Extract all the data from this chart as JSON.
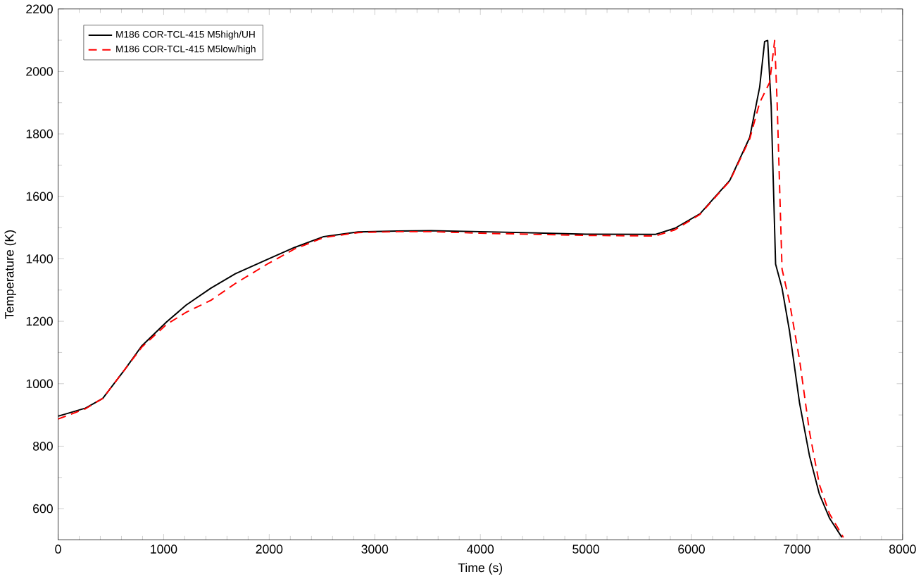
{
  "chart_data": {
    "type": "line",
    "xlabel": "Time (s)",
    "ylabel": "Temperature (K)",
    "xlim": [
      0,
      8000
    ],
    "ylim": [
      500,
      2200
    ],
    "xticks": [
      0,
      1000,
      2000,
      3000,
      4000,
      5000,
      6000,
      7000,
      8000
    ],
    "yticks": [
      600,
      800,
      1000,
      1200,
      1400,
      1600,
      1800,
      2000,
      2200
    ],
    "legend": "top left",
    "grid": false,
    "series": [
      {
        "name": "M186 COR-TCL-415 M5high/UH",
        "color": "#000000",
        "line_style": "solid",
        "x": [
          0,
          260,
          423,
          633,
          795,
          1028,
          1214,
          1447,
          1679,
          1981,
          2237,
          2516,
          2842,
          3214,
          3533,
          4000,
          5000,
          5656,
          5844,
          6080,
          6363,
          6552,
          6646,
          6693,
          6722,
          6755,
          6797,
          6858,
          6929,
          7024,
          7118,
          7212,
          7307,
          7425
        ],
        "values": [
          896,
          922,
          953,
          1046,
          1122,
          1198,
          1252,
          1306,
          1352,
          1398,
          1436,
          1471,
          1486,
          1489,
          1490,
          1487,
          1479,
          1478,
          1498,
          1544,
          1651,
          1789,
          1950,
          2096,
          2099,
          1890,
          1383,
          1306,
          1168,
          938,
          769,
          646,
          570,
          508
        ]
      },
      {
        "name": "M186 COR-TCL-415 M5low/high",
        "color": "#ff0000",
        "line_style": "dashed",
        "x": [
          0,
          260,
          423,
          633,
          795,
          1028,
          1214,
          1447,
          1679,
          1981,
          2237,
          2516,
          2842,
          3214,
          3533,
          4000,
          5000,
          5656,
          5844,
          6080,
          6363,
          6552,
          6646,
          6741,
          6788,
          6811,
          6858,
          6929,
          7024,
          7118,
          7212,
          7307,
          7439
        ],
        "values": [
          887,
          920,
          953,
          1046,
          1118,
          1190,
          1229,
          1267,
          1321,
          1383,
          1431,
          1468,
          1484,
          1487,
          1487,
          1482,
          1475,
          1473,
          1493,
          1542,
          1649,
          1784,
          1900,
          1965,
          2099,
          1905,
          1367,
          1261,
          1076,
          846,
          677,
          584,
          508
        ]
      }
    ]
  }
}
